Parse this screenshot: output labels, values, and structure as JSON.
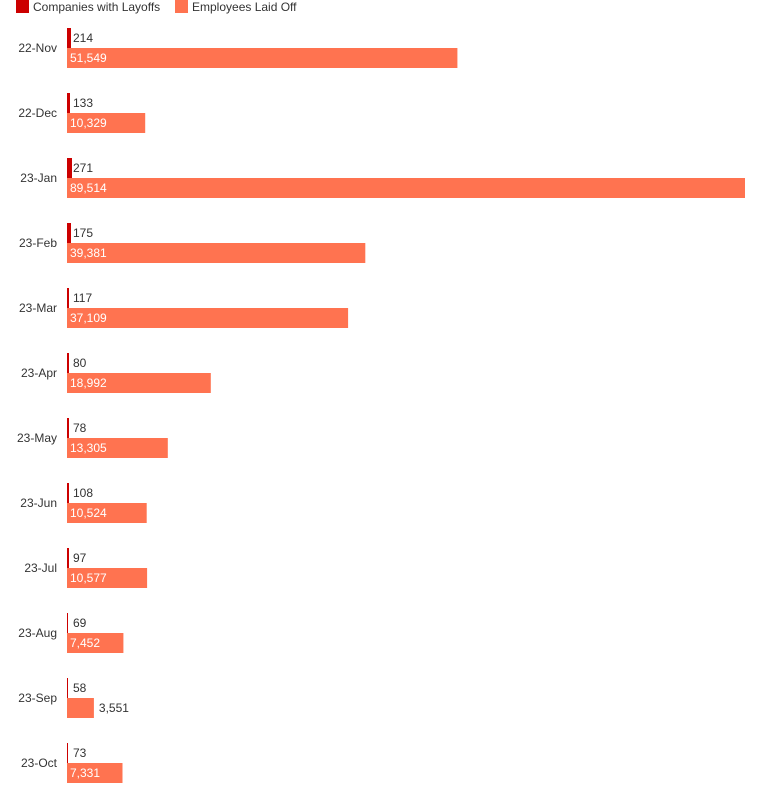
{
  "chart_data": {
    "type": "bar",
    "orientation": "horizontal",
    "categories": [
      "22-Nov",
      "22-Dec",
      "23-Jan",
      "23-Feb",
      "23-Mar",
      "23-Apr",
      "23-May",
      "23-Jun",
      "23-Jul",
      "23-Aug",
      "23-Sep",
      "23-Oct"
    ],
    "series": [
      {
        "name": "Companies with Layoffs",
        "color": "#cc0000",
        "values": [
          214,
          133,
          271,
          175,
          117,
          80,
          78,
          108,
          97,
          69,
          58,
          73
        ],
        "labels": [
          "214",
          "133",
          "271",
          "175",
          "117",
          "80",
          "78",
          "108",
          "97",
          "69",
          "58",
          "73"
        ]
      },
      {
        "name": "Employees Laid Off",
        "color": "#ff7350",
        "values": [
          51549,
          10329,
          89514,
          39381,
          37109,
          18992,
          13305,
          10524,
          10577,
          7452,
          3551,
          7331
        ],
        "labels": [
          "51,549",
          "10,329",
          "89,514",
          "39,381",
          "37,109",
          "18,992",
          "13,305",
          "10,524",
          "10,577",
          "7,452",
          "3,551",
          "7,331"
        ]
      }
    ],
    "xlim": [
      0,
      89514
    ],
    "grid": false,
    "legend": "top-left"
  }
}
